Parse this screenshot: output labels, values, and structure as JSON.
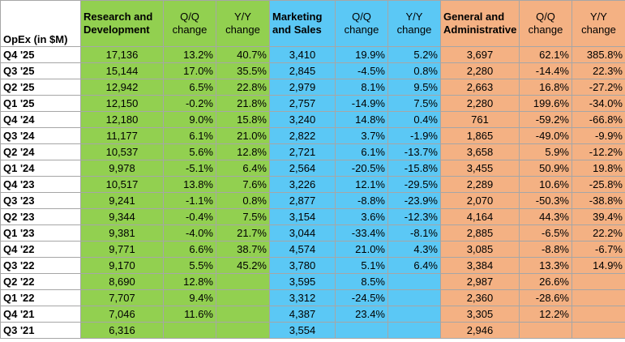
{
  "colors": {
    "rd": "#92d050",
    "ms": "#5bc8f5",
    "ga": "#f4b183"
  },
  "header": {
    "opex_label": "OpEx (in $M)",
    "rd_line1": "Research and",
    "rd_line2": "Development",
    "ms_line1": "Marketing",
    "ms_line2": "and Sales",
    "ga_line1": "General and",
    "ga_line2": "Administrative",
    "qq_line1": "Q/Q",
    "qq_line2": "change",
    "yy_line1": "Y/Y",
    "yy_line2": "change"
  },
  "chart_data": {
    "type": "table",
    "columns": [
      "OpEx (in $M)",
      "Research and Development",
      "Q/Q change",
      "Y/Y change",
      "Marketing and Sales",
      "Q/Q change",
      "Y/Y change",
      "General and Administrative",
      "Q/Q change",
      "Y/Y change"
    ],
    "rows": [
      [
        "Q4 '25",
        "17,136",
        "13.2%",
        "40.7%",
        "3,410",
        "19.9%",
        "5.2%",
        "3,697",
        "62.1%",
        "385.8%"
      ],
      [
        "Q3 '25",
        "15,144",
        "17.0%",
        "35.5%",
        "2,845",
        "-4.5%",
        "0.8%",
        "2,280",
        "-14.4%",
        "22.3%"
      ],
      [
        "Q2 '25",
        "12,942",
        "6.5%",
        "22.8%",
        "2,979",
        "8.1%",
        "9.5%",
        "2,663",
        "16.8%",
        "-27.2%"
      ],
      [
        "Q1 '25",
        "12,150",
        "-0.2%",
        "21.8%",
        "2,757",
        "-14.9%",
        "7.5%",
        "2,280",
        "199.6%",
        "-34.0%"
      ],
      [
        "Q4 '24",
        "12,180",
        "9.0%",
        "15.8%",
        "3,240",
        "14.8%",
        "0.4%",
        "761",
        "-59.2%",
        "-66.8%"
      ],
      [
        "Q3 '24",
        "11,177",
        "6.1%",
        "21.0%",
        "2,822",
        "3.7%",
        "-1.9%",
        "1,865",
        "-49.0%",
        "-9.9%"
      ],
      [
        "Q2 '24",
        "10,537",
        "5.6%",
        "12.8%",
        "2,721",
        "6.1%",
        "-13.7%",
        "3,658",
        "5.9%",
        "-12.2%"
      ],
      [
        "Q1 '24",
        "9,978",
        "-5.1%",
        "6.4%",
        "2,564",
        "-20.5%",
        "-15.8%",
        "3,455",
        "50.9%",
        "19.8%"
      ],
      [
        "Q4 '23",
        "10,517",
        "13.8%",
        "7.6%",
        "3,226",
        "12.1%",
        "-29.5%",
        "2,289",
        "10.6%",
        "-25.8%"
      ],
      [
        "Q3 '23",
        "9,241",
        "-1.1%",
        "0.8%",
        "2,877",
        "-8.8%",
        "-23.9%",
        "2,070",
        "-50.3%",
        "-38.8%"
      ],
      [
        "Q2 '23",
        "9,344",
        "-0.4%",
        "7.5%",
        "3,154",
        "3.6%",
        "-12.3%",
        "4,164",
        "44.3%",
        "39.4%"
      ],
      [
        "Q1 '23",
        "9,381",
        "-4.0%",
        "21.7%",
        "3,044",
        "-33.4%",
        "-8.1%",
        "2,885",
        "-6.5%",
        "22.2%"
      ],
      [
        "Q4 '22",
        "9,771",
        "6.6%",
        "38.7%",
        "4,574",
        "21.0%",
        "4.3%",
        "3,085",
        "-8.8%",
        "-6.7%"
      ],
      [
        "Q3 '22",
        "9,170",
        "5.5%",
        "45.2%",
        "3,780",
        "5.1%",
        "6.4%",
        "3,384",
        "13.3%",
        "14.9%"
      ],
      [
        "Q2 '22",
        "8,690",
        "12.8%",
        "",
        "3,595",
        "8.5%",
        "",
        "2,987",
        "26.6%",
        ""
      ],
      [
        "Q1 '22",
        "7,707",
        "9.4%",
        "",
        "3,312",
        "-24.5%",
        "",
        "2,360",
        "-28.6%",
        ""
      ],
      [
        "Q4 '21",
        "7,046",
        "11.6%",
        "",
        "4,387",
        "23.4%",
        "",
        "3,305",
        "12.2%",
        ""
      ],
      [
        "Q3 '21",
        "6,316",
        "",
        "",
        "3,554",
        "",
        "",
        "2,946",
        "",
        ""
      ]
    ]
  }
}
